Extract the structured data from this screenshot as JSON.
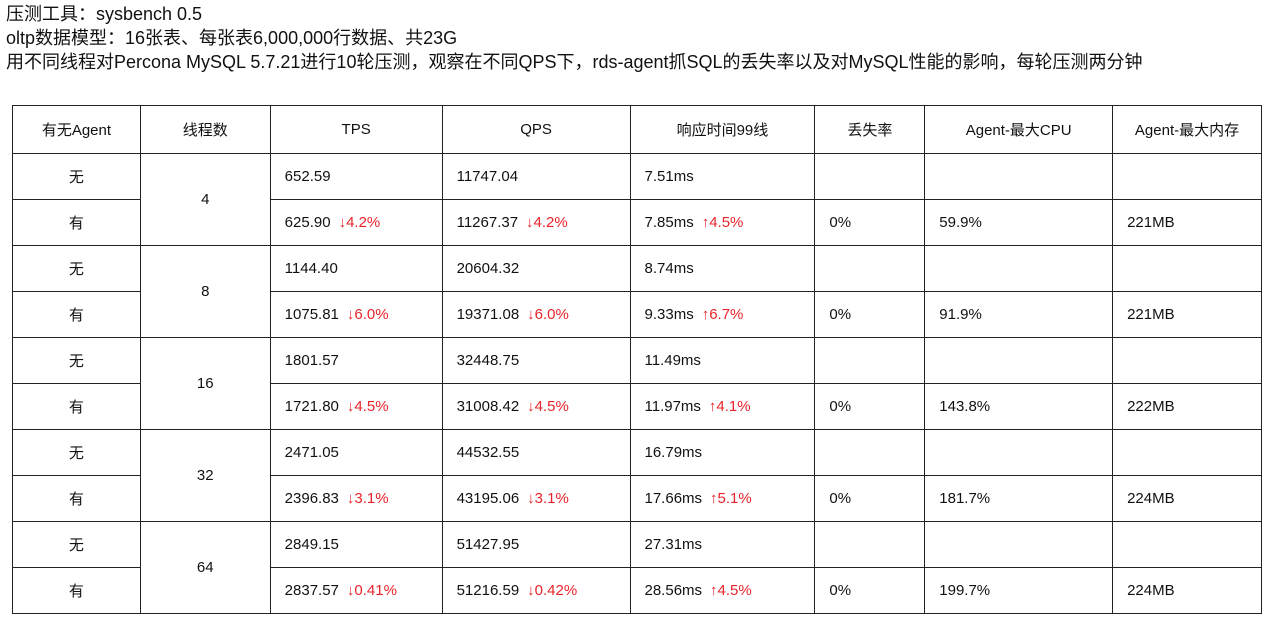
{
  "intro": [
    "压测工具：sysbench 0.5",
    "oltp数据模型：16张表、每张表6,000,000行数据、共23G",
    "用不同线程对Percona MySQL 5.7.21进行10轮压测，观察在不同QPS下，rds-agent抓SQL的丢失率以及对MySQL性能的影响，每轮压测两分钟"
  ],
  "headers": [
    "有无Agent",
    "线程数",
    "TPS",
    "QPS",
    "响应时间99线",
    "丢失率",
    "Agent-最大CPU",
    "Agent-最大内存"
  ],
  "groups": [
    {
      "threads": "4",
      "rows": [
        {
          "agent": "无",
          "tps": "652.59",
          "tps_d": "",
          "qps": "11747.04",
          "qps_d": "",
          "rt": "7.51ms",
          "rt_d": "",
          "loss": "",
          "cpu": "",
          "mem": ""
        },
        {
          "agent": "有",
          "tps": "625.90",
          "tps_d": "↓4.2%",
          "qps": "11267.37",
          "qps_d": "↓4.2%",
          "rt": "7.85ms",
          "rt_d": "↑4.5%",
          "loss": "0%",
          "cpu": "59.9%",
          "mem": "221MB"
        }
      ]
    },
    {
      "threads": "8",
      "rows": [
        {
          "agent": "无",
          "tps": "1144.40",
          "tps_d": "",
          "qps": "20604.32",
          "qps_d": "",
          "rt": "8.74ms",
          "rt_d": "",
          "loss": "",
          "cpu": "",
          "mem": ""
        },
        {
          "agent": "有",
          "tps": "1075.81",
          "tps_d": "↓6.0%",
          "qps": "19371.08",
          "qps_d": "↓6.0%",
          "rt": "9.33ms",
          "rt_d": "↑6.7%",
          "loss": "0%",
          "cpu": "91.9%",
          "mem": "221MB"
        }
      ]
    },
    {
      "threads": "16",
      "rows": [
        {
          "agent": "无",
          "tps": "1801.57",
          "tps_d": "",
          "qps": "32448.75",
          "qps_d": "",
          "rt": "11.49ms",
          "rt_d": "",
          "loss": "",
          "cpu": "",
          "mem": ""
        },
        {
          "agent": "有",
          "tps": "1721.80",
          "tps_d": "↓4.5%",
          "qps": "31008.42",
          "qps_d": "↓4.5%",
          "rt": "11.97ms",
          "rt_d": "↑4.1%",
          "loss": "0%",
          "cpu": "143.8%",
          "mem": "222MB"
        }
      ]
    },
    {
      "threads": "32",
      "rows": [
        {
          "agent": "无",
          "tps": "2471.05",
          "tps_d": "",
          "qps": "44532.55",
          "qps_d": "",
          "rt": "16.79ms",
          "rt_d": "",
          "loss": "",
          "cpu": "",
          "mem": ""
        },
        {
          "agent": "有",
          "tps": "2396.83",
          "tps_d": "↓3.1%",
          "qps": "43195.06",
          "qps_d": "↓3.1%",
          "rt": "17.66ms",
          "rt_d": "↑5.1%",
          "loss": "0%",
          "cpu": "181.7%",
          "mem": "224MB"
        }
      ]
    },
    {
      "threads": "64",
      "rows": [
        {
          "agent": "无",
          "tps": "2849.15",
          "tps_d": "",
          "qps": "51427.95",
          "qps_d": "",
          "rt": "27.31ms",
          "rt_d": "",
          "loss": "",
          "cpu": "",
          "mem": ""
        },
        {
          "agent": "有",
          "tps": "2837.57",
          "tps_d": "↓0.41%",
          "qps": "51216.59",
          "qps_d": "↓0.42%",
          "rt": "28.56ms",
          "rt_d": "↑4.5%",
          "loss": "0%",
          "cpu": "199.7%",
          "mem": "224MB"
        }
      ]
    }
  ]
}
